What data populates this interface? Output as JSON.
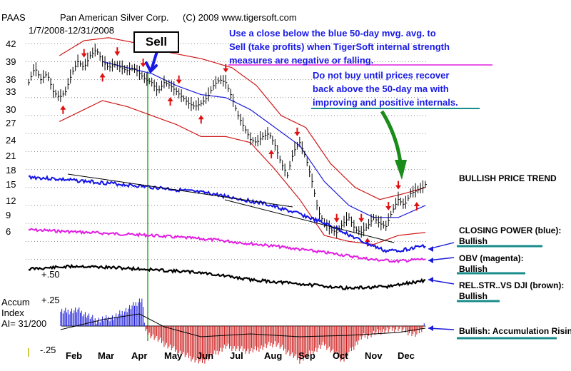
{
  "header": {
    "ticker": "PAAS",
    "company": "Pan American Silver Corp.",
    "copyright": "(C) 2009 www.tigersoft.com",
    "date_range": "1/7/2008-12/31/2008"
  },
  "annotations": {
    "sell_label": "Sell",
    "note1_lines": [
      "Use a close below the blue 50-day mvg. avg. to",
      "Sell (take profits) when TigerSoft internal strength",
      "measures are negative or falling."
    ],
    "note2_lines": [
      "Do not buy until prices recover",
      "back above the 50-day ma with",
      "improving and positive internals."
    ]
  },
  "indicator_labels": {
    "trend": "BULLISH PRICE TREND",
    "closing_power": "CLOSING POWER (blue):",
    "closing_power_status": "Bullish",
    "obv": "OBV (magenta):",
    "obv_status": "Bullish",
    "relstr": "REL.STR..VS DJI (brown):",
    "relstr_status": "Bullish",
    "accum_note": "Bullish: Accumulation Rising",
    "accum_title": "Accum",
    "accum_index": "Index",
    "accum_value": "AI= 31/200"
  },
  "colors": {
    "closing_power": "#1414e6",
    "obv": "#e21ee2",
    "relstr": "#000000",
    "ma50": "#1a1ad8",
    "bands": "#d01818",
    "signal_up": "#e01010",
    "sell_line": "#10a010",
    "accum_pos": "#1a1ad8",
    "accum_neg": "#cc1a1a",
    "note_text": "#1a1ae6",
    "callout_arrow": "#1a8c1a",
    "underline_magenta": "#e01ee0",
    "underline_teal": "#1a8c8c"
  },
  "chart_data": {
    "type": "line",
    "y_ticks": [
      42,
      39,
      36,
      33,
      30,
      27,
      24,
      21,
      18,
      15,
      12,
      9,
      6
    ],
    "ylim": [
      6,
      43
    ],
    "secondary_ticks": [
      "+.50",
      "+.25",
      "-.25"
    ],
    "months": [
      "Feb",
      "Mar",
      "Apr",
      "May",
      "Jun",
      "Jul",
      "Aug",
      "Sep",
      "Oct",
      "Nov",
      "Dec"
    ],
    "price_close": [
      [
        0,
        35.5
      ],
      [
        5,
        38
      ],
      [
        10,
        36
      ],
      [
        15,
        37
      ],
      [
        20,
        34
      ],
      [
        25,
        33
      ],
      [
        30,
        34
      ],
      [
        35,
        37
      ],
      [
        40,
        39
      ],
      [
        45,
        38
      ],
      [
        50,
        40
      ],
      [
        55,
        41
      ],
      [
        60,
        39
      ],
      [
        65,
        38
      ],
      [
        70,
        38.5
      ],
      [
        75,
        38
      ],
      [
        80,
        37.5
      ],
      [
        85,
        38
      ],
      [
        90,
        37
      ],
      [
        95,
        36
      ],
      [
        100,
        35.5
      ],
      [
        105,
        34
      ],
      [
        110,
        35.5
      ],
      [
        115,
        35
      ],
      [
        120,
        34
      ],
      [
        125,
        33
      ],
      [
        130,
        32
      ],
      [
        135,
        31.5
      ],
      [
        140,
        32
      ],
      [
        145,
        33
      ],
      [
        150,
        35
      ],
      [
        155,
        36
      ],
      [
        160,
        35.5
      ],
      [
        165,
        33
      ],
      [
        170,
        30
      ],
      [
        175,
        28
      ],
      [
        180,
        26
      ],
      [
        185,
        25.5
      ],
      [
        190,
        26.5
      ],
      [
        195,
        27
      ],
      [
        200,
        25
      ],
      [
        205,
        22
      ],
      [
        210,
        20
      ],
      [
        215,
        24
      ],
      [
        220,
        25.5
      ],
      [
        225,
        23
      ],
      [
        230,
        19
      ],
      [
        235,
        14
      ],
      [
        240,
        12
      ],
      [
        245,
        11
      ],
      [
        250,
        10.5
      ],
      [
        255,
        12
      ],
      [
        260,
        13
      ],
      [
        265,
        11
      ],
      [
        270,
        10.5
      ],
      [
        275,
        11.5
      ],
      [
        280,
        13
      ],
      [
        285,
        12
      ],
      [
        290,
        11.5
      ],
      [
        295,
        14
      ],
      [
        300,
        16
      ],
      [
        305,
        15
      ],
      [
        310,
        17
      ],
      [
        315,
        17.5
      ],
      [
        320,
        18
      ],
      [
        322,
        18.5
      ]
    ],
    "ma50": [
      [
        60,
        39
      ],
      [
        80,
        38
      ],
      [
        100,
        37
      ],
      [
        120,
        35
      ],
      [
        140,
        33.5
      ],
      [
        160,
        33
      ],
      [
        180,
        31
      ],
      [
        200,
        28
      ],
      [
        220,
        25
      ],
      [
        240,
        19
      ],
      [
        260,
        15
      ],
      [
        280,
        13
      ],
      [
        300,
        13
      ],
      [
        322,
        15
      ]
    ],
    "band_upper": [
      [
        25,
        40
      ],
      [
        45,
        42.5
      ],
      [
        65,
        43
      ],
      [
        90,
        42
      ],
      [
        115,
        40.5
      ],
      [
        140,
        39.5
      ],
      [
        165,
        38
      ],
      [
        185,
        35
      ],
      [
        205,
        30
      ],
      [
        225,
        28
      ],
      [
        245,
        22
      ],
      [
        265,
        18
      ],
      [
        285,
        16
      ],
      [
        305,
        17
      ],
      [
        322,
        18
      ]
    ],
    "band_lower": [
      [
        25,
        29
      ],
      [
        45,
        31
      ],
      [
        60,
        32.5
      ],
      [
        80,
        31.5
      ],
      [
        100,
        30
      ],
      [
        120,
        28.5
      ],
      [
        140,
        26.5
      ],
      [
        160,
        26.5
      ],
      [
        180,
        25.5
      ],
      [
        200,
        21
      ],
      [
        220,
        16
      ],
      [
        240,
        10
      ],
      [
        260,
        9
      ],
      [
        280,
        8.5
      ],
      [
        300,
        10
      ],
      [
        322,
        10.5
      ]
    ],
    "buy_arrows_x": [
      28,
      60,
      115,
      140,
      197,
      275,
      315
    ],
    "sell_arrows_x": [
      45,
      72,
      93,
      122,
      160,
      218,
      250,
      270,
      292,
      300
    ]
  }
}
